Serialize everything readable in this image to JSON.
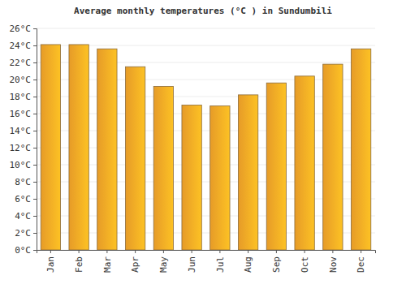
{
  "chart_data": {
    "type": "bar",
    "title": "Average monthly temperatures (°C ) in Sundumbili",
    "categories": [
      "Jan",
      "Feb",
      "Mar",
      "Apr",
      "May",
      "Jun",
      "Jul",
      "Aug",
      "Sep",
      "Oct",
      "Nov",
      "Dec"
    ],
    "values": [
      24.1,
      24.1,
      23.6,
      21.5,
      19.2,
      17.0,
      16.9,
      18.2,
      19.6,
      20.4,
      21.8,
      23.6
    ],
    "color": "#fbaa2c",
    "ylim": [
      0,
      26
    ],
    "yticks": [
      {
        "value": 0,
        "label": "0°C"
      },
      {
        "value": 2,
        "label": "2°C"
      },
      {
        "value": 4,
        "label": "4°C"
      },
      {
        "value": 6,
        "label": "6°C"
      },
      {
        "value": 8,
        "label": "8°C"
      },
      {
        "value": 10,
        "label": "10°C"
      },
      {
        "value": 12,
        "label": "12°C"
      },
      {
        "value": 14,
        "label": "14°C"
      },
      {
        "value": 16,
        "label": "16°C"
      },
      {
        "value": 18,
        "label": "18°C"
      },
      {
        "value": 20,
        "label": "20°C"
      },
      {
        "value": 22,
        "label": "22°C"
      },
      {
        "value": 24,
        "label": "24°C"
      },
      {
        "value": 26,
        "label": "26°C"
      }
    ],
    "grid": true
  }
}
